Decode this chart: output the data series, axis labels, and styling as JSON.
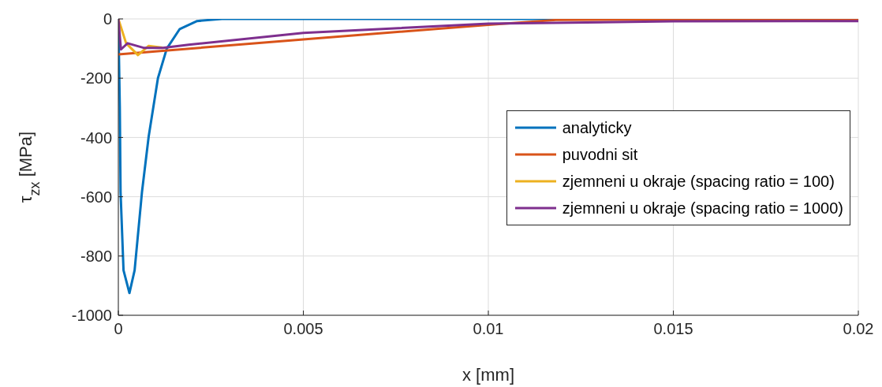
{
  "chart_data": {
    "type": "line",
    "xlabel": "x [mm]",
    "ylabel": "τ$_{zx}$ [MPa]",
    "xlim": [
      0,
      0.02
    ],
    "xticks": [
      0,
      0.005,
      0.01,
      0.015,
      0.02
    ],
    "ylim": [
      -1000,
      0
    ],
    "yticks": [
      -1000,
      -800,
      -600,
      -400,
      -200,
      0
    ],
    "grid": true,
    "legend": "right",
    "marker": "none",
    "line_style": "solid",
    "series": [
      {
        "name": "analyticky",
        "color": "#0072bd",
        "x": [
          0,
          4e-05,
          6e-05,
          0.00014,
          0.0003,
          0.00044,
          0.00064,
          0.00082,
          0.00107,
          0.00131,
          0.00166,
          0.00213,
          0.0028,
          0.005,
          0.01,
          0.015,
          0.02
        ],
        "values": [
          0,
          -300,
          -583,
          -848,
          -925,
          -848,
          -583,
          -397,
          -200,
          -100,
          -34,
          -7,
          0,
          0,
          0,
          0,
          0
        ]
      },
      {
        "name": "puvodni sit",
        "color": "#d95319",
        "x": [
          0,
          0.005,
          0.01,
          0.0119,
          0.015,
          0.02
        ],
        "values": [
          -120,
          -69,
          -20,
          -3,
          -2,
          -2
        ]
      },
      {
        "name": "zjemneni u okraje (spacing ratio = 100)",
        "color": "#edb120",
        "x": [
          0,
          0.00021,
          0.00053,
          0.00082,
          0.0012
        ],
        "values": [
          0,
          -82,
          -122,
          -91,
          -97
        ]
      },
      {
        "name": "zjemneni u okraje (spacing ratio = 1000)",
        "color": "#7e2f8e",
        "x": [
          0,
          7e-05,
          0.00025,
          0.0007,
          0.0012,
          0.0019,
          0.005,
          0.01,
          0.015,
          0.02
        ],
        "values": [
          0,
          -103,
          -82,
          -98,
          -98,
          -87,
          -47,
          -16,
          -8,
          -7
        ]
      }
    ]
  }
}
